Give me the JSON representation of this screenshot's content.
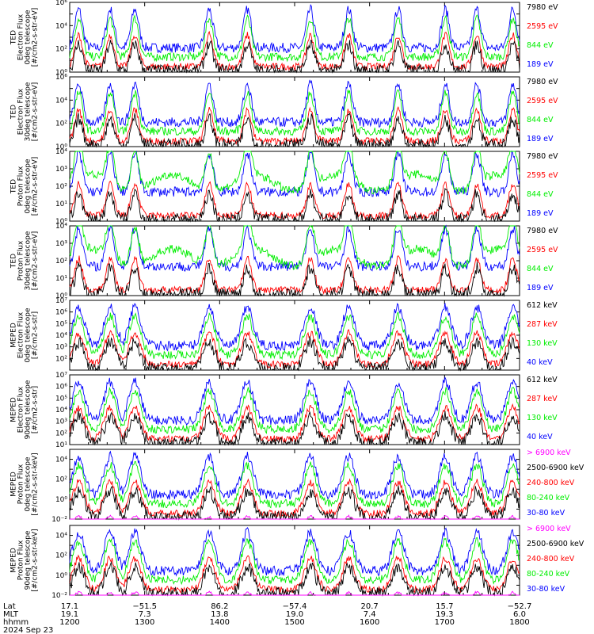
{
  "colors": {
    "blue": "#0000ff",
    "red": "#ff0000",
    "green": "#00ee00",
    "black": "#000000",
    "magenta": "#ff00ff"
  },
  "chart_data": [
    {
      "type": "line",
      "ylabel": [
        "TED",
        "Electron Flux",
        "0deg telescope",
        "[#/cm2-s-str-eV]"
      ],
      "ylim": [
        1,
        1000000
      ],
      "yticks": [
        {
          "v": 1,
          "label": "10⁰"
        },
        {
          "v": 100,
          "label": "10²"
        },
        {
          "v": 10000,
          "label": "10⁴"
        },
        {
          "v": 1000000,
          "label": "10⁶"
        }
      ],
      "legend": [
        {
          "label": "7980 eV",
          "color": "black"
        },
        {
          "label": "2595 eV",
          "color": "red"
        },
        {
          "label": "844 eV",
          "color": "green"
        },
        {
          "label": "189 eV",
          "color": "blue"
        }
      ]
    },
    {
      "type": "line",
      "ylabel": [
        "TED",
        "Electron Flux",
        "30deg telescope",
        "[#/cm2-s-str-eV]"
      ],
      "ylim": [
        1,
        1000000
      ],
      "yticks": [
        {
          "v": 1,
          "label": "10⁰"
        },
        {
          "v": 100,
          "label": "10²"
        },
        {
          "v": 10000,
          "label": "10⁴"
        },
        {
          "v": 1000000,
          "label": "10⁶"
        }
      ],
      "legend": [
        {
          "label": "7980 eV",
          "color": "black"
        },
        {
          "label": "2595 eV",
          "color": "red"
        },
        {
          "label": "844 eV",
          "color": "green"
        },
        {
          "label": "189 eV",
          "color": "blue"
        }
      ]
    },
    {
      "type": "line",
      "ylabel": [
        "TED",
        "Proton Flux",
        "0deg telescope",
        "[#/cm2-s-str-eV]"
      ],
      "ylim": [
        1,
        10000
      ],
      "yticks": [
        {
          "v": 1,
          "label": "10⁰"
        },
        {
          "v": 10,
          "label": "10¹"
        },
        {
          "v": 100,
          "label": "10²"
        },
        {
          "v": 1000,
          "label": "10³"
        },
        {
          "v": 10000,
          "label": "10⁴"
        }
      ],
      "legend": [
        {
          "label": "7980 eV",
          "color": "black"
        },
        {
          "label": "2595 eV",
          "color": "red"
        },
        {
          "label": "844 eV",
          "color": "green"
        },
        {
          "label": "189 eV",
          "color": "blue"
        }
      ]
    },
    {
      "type": "line",
      "ylabel": [
        "TED",
        "Proton Flux",
        "30deg telescope",
        "[#/cm2-s-str-eV]"
      ],
      "ylim": [
        1,
        10000
      ],
      "yticks": [
        {
          "v": 1,
          "label": "10⁰"
        },
        {
          "v": 10,
          "label": "10¹"
        },
        {
          "v": 100,
          "label": "10²"
        },
        {
          "v": 1000,
          "label": "10³"
        },
        {
          "v": 10000,
          "label": "10⁴"
        }
      ],
      "legend": [
        {
          "label": "7980 eV",
          "color": "black"
        },
        {
          "label": "2595 eV",
          "color": "red"
        },
        {
          "label": "844 eV",
          "color": "green"
        },
        {
          "label": "189 eV",
          "color": "blue"
        }
      ]
    },
    {
      "type": "line",
      "ylabel": [
        "MEPED",
        "Electron Flux",
        "0deg telescope",
        "[#/cm2-s-str]"
      ],
      "ylim": [
        10,
        10000000
      ],
      "yticks": [
        {
          "v": 100,
          "label": "10²"
        },
        {
          "v": 1000,
          "label": "10³"
        },
        {
          "v": 10000,
          "label": "10⁴"
        },
        {
          "v": 100000,
          "label": "10⁵"
        },
        {
          "v": 1000000,
          "label": "10⁶"
        },
        {
          "v": 10000000,
          "label": "10⁷"
        }
      ],
      "legend": [
        {
          "label": "612 keV",
          "color": "black"
        },
        {
          "label": "287 keV",
          "color": "red"
        },
        {
          "label": "130 keV",
          "color": "green"
        },
        {
          "label": "40 keV",
          "color": "blue"
        }
      ]
    },
    {
      "type": "line",
      "ylabel": [
        "MEPED",
        "Electron Flux",
        "90deg telescope",
        "[#/cm2-s-str]"
      ],
      "ylim": [
        10,
        10000000
      ],
      "yticks": [
        {
          "v": 10,
          "label": "10¹"
        },
        {
          "v": 100,
          "label": "10²"
        },
        {
          "v": 1000,
          "label": "10³"
        },
        {
          "v": 10000,
          "label": "10⁴"
        },
        {
          "v": 100000,
          "label": "10⁵"
        },
        {
          "v": 1000000,
          "label": "10⁶"
        },
        {
          "v": 10000000,
          "label": "10⁷"
        }
      ],
      "legend": [
        {
          "label": "612 keV",
          "color": "black"
        },
        {
          "label": "287 keV",
          "color": "red"
        },
        {
          "label": "130 keV",
          "color": "green"
        },
        {
          "label": "40 keV",
          "color": "blue"
        }
      ]
    },
    {
      "type": "line",
      "ylabel": [
        "MEPED",
        "Proton Flux",
        "0deg telescope",
        "[#/cm2-s-str-keV]"
      ],
      "ylim": [
        0.01,
        100000
      ],
      "yticks": [
        {
          "v": 0.01,
          "label": "10⁻²"
        },
        {
          "v": 1,
          "label": "10⁰"
        },
        {
          "v": 100,
          "label": "10²"
        },
        {
          "v": 10000,
          "label": "10⁴"
        }
      ],
      "legend": [
        {
          "label": "> 6900 keV",
          "color": "magenta"
        },
        {
          "label": "2500-6900 keV",
          "color": "black"
        },
        {
          "label": "240-800 keV",
          "color": "red"
        },
        {
          "label": "80-240 keV",
          "color": "green"
        },
        {
          "label": "30-80 keV",
          "color": "blue"
        }
      ]
    },
    {
      "type": "line",
      "ylabel": [
        "MEPED",
        "Proton Flux",
        "90deg telescope",
        "[#/cm2-s-str-keV]"
      ],
      "ylim": [
        0.01,
        100000
      ],
      "yticks": [
        {
          "v": 0.01,
          "label": "10⁻²"
        },
        {
          "v": 1,
          "label": "10⁰"
        },
        {
          "v": 100,
          "label": "10²"
        },
        {
          "v": 10000,
          "label": "10⁴"
        }
      ],
      "legend": [
        {
          "label": "> 6900 keV",
          "color": "magenta"
        },
        {
          "label": "2500-6900 keV",
          "color": "black"
        },
        {
          "label": "240-800 keV",
          "color": "red"
        },
        {
          "label": "80-240 keV",
          "color": "green"
        },
        {
          "label": "30-80 keV",
          "color": "blue"
        }
      ]
    }
  ],
  "x_axis": {
    "xlim": [
      "1200",
      "1800"
    ],
    "row_labels": [
      "Lat",
      "MLT",
      "hhmm",
      "2024 Sep 23"
    ],
    "ticks": [
      {
        "hhmm": "1200",
        "lat": "17.1",
        "mlt": "19.1"
      },
      {
        "hhmm": "1300",
        "lat": "−51.5",
        "mlt": "7.3"
      },
      {
        "hhmm": "1400",
        "lat": "86.2",
        "mlt": "13.8"
      },
      {
        "hhmm": "1500",
        "lat": "−57.4",
        "mlt": "19.0"
      },
      {
        "hhmm": "1600",
        "lat": "20.7",
        "mlt": "7.4"
      },
      {
        "hhmm": "1700",
        "lat": "15.7",
        "mlt": "19.3"
      },
      {
        "hhmm": "1800",
        "lat": "−52.7",
        "mlt": "6.0"
      }
    ]
  }
}
